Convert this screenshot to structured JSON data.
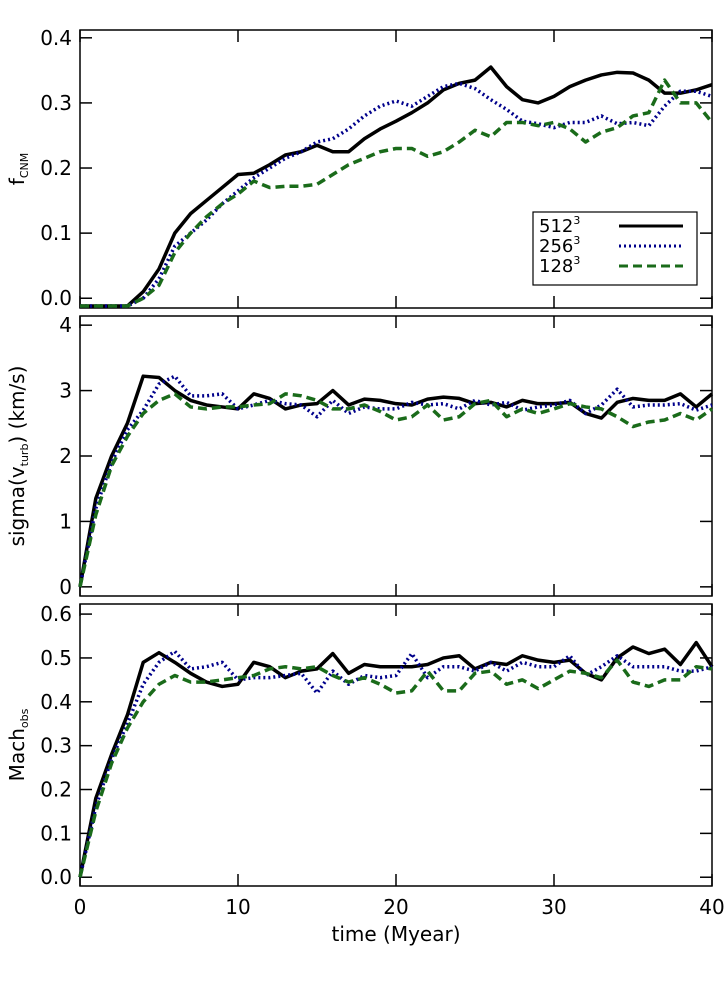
{
  "chart_data": [
    {
      "type": "line",
      "ylabel": [
        {
          "text": "f"
        },
        {
          "sub": "CNM"
        }
      ],
      "x": [
        0,
        1,
        2,
        3,
        4,
        5,
        6,
        7,
        8,
        9,
        10,
        11,
        12,
        13,
        14,
        15,
        16,
        17,
        18,
        19,
        20,
        21,
        22,
        23,
        24,
        25,
        26,
        27,
        28,
        29,
        30,
        31,
        32,
        33,
        34,
        35,
        36,
        37,
        38,
        39,
        40
      ],
      "xlim": [
        0,
        40
      ],
      "ylim": [
        -0.015,
        0.412
      ],
      "yticks": [
        {
          "value": 0,
          "label": "0.0"
        },
        0.1,
        0.2,
        0.3,
        0.4
      ],
      "legend": "lower right",
      "series": [
        {
          "name": "512",
          "name_sup": "3",
          "color": "#000000",
          "dash": "solid",
          "values": [
            -0.012,
            -0.012,
            -0.012,
            -0.012,
            0.01,
            0.045,
            0.1,
            0.13,
            0.15,
            0.17,
            0.19,
            0.192,
            0.205,
            0.22,
            0.225,
            0.235,
            0.225,
            0.225,
            0.245,
            0.26,
            0.272,
            0.285,
            0.3,
            0.32,
            0.33,
            0.335,
            0.355,
            0.325,
            0.305,
            0.3,
            0.31,
            0.325,
            0.335,
            0.343,
            0.347,
            0.346,
            0.335,
            0.315,
            0.315,
            0.32,
            0.328
          ]
        },
        {
          "name": "256",
          "name_sup": "3",
          "color": "#00008b",
          "dash": "dotted",
          "values": [
            -0.012,
            -0.012,
            -0.012,
            -0.012,
            0,
            0.03,
            0.08,
            0.1,
            0.12,
            0.145,
            0.165,
            0.185,
            0.2,
            0.215,
            0.225,
            0.24,
            0.245,
            0.26,
            0.28,
            0.295,
            0.303,
            0.295,
            0.31,
            0.325,
            0.33,
            0.322,
            0.305,
            0.29,
            0.272,
            0.268,
            0.262,
            0.27,
            0.27,
            0.28,
            0.268,
            0.27,
            0.265,
            0.295,
            0.318,
            0.318,
            0.31
          ]
        },
        {
          "name": "128",
          "name_sup": "3",
          "color": "#1a6b1a",
          "dash": "dashed",
          "values": [
            -0.012,
            -0.012,
            -0.012,
            -0.012,
            0,
            0.02,
            0.07,
            0.1,
            0.125,
            0.145,
            0.16,
            0.18,
            0.17,
            0.172,
            0.172,
            0.175,
            0.19,
            0.205,
            0.215,
            0.225,
            0.23,
            0.23,
            0.218,
            0.225,
            0.24,
            0.258,
            0.248,
            0.27,
            0.27,
            0.265,
            0.27,
            0.26,
            0.24,
            0.255,
            0.262,
            0.28,
            0.285,
            0.335,
            0.3,
            0.3,
            0.27
          ]
        }
      ]
    },
    {
      "type": "line",
      "ylabel": [
        {
          "text": "sigma(v"
        },
        {
          "sub": "turb"
        },
        {
          "text": ") (km/s)"
        }
      ],
      "x": [
        0,
        1,
        2,
        3,
        4,
        5,
        6,
        7,
        8,
        9,
        10,
        11,
        12,
        13,
        14,
        15,
        16,
        17,
        18,
        19,
        20,
        21,
        22,
        23,
        24,
        25,
        26,
        27,
        28,
        29,
        30,
        31,
        32,
        33,
        34,
        35,
        36,
        37,
        38,
        39,
        40
      ],
      "xlim": [
        0,
        40
      ],
      "ylim": [
        -0.14,
        4.14
      ],
      "yticks": [
        0,
        1,
        2,
        3,
        4
      ],
      "series": [
        {
          "color": "#000000",
          "dash": "solid",
          "values": [
            0,
            1.35,
            2.0,
            2.5,
            3.22,
            3.2,
            3.0,
            2.85,
            2.78,
            2.75,
            2.72,
            2.95,
            2.88,
            2.72,
            2.78,
            2.8,
            3.0,
            2.78,
            2.87,
            2.85,
            2.8,
            2.78,
            2.87,
            2.9,
            2.88,
            2.8,
            2.82,
            2.75,
            2.85,
            2.8,
            2.8,
            2.82,
            2.65,
            2.58,
            2.82,
            2.88,
            2.85,
            2.85,
            2.95,
            2.75,
            2.95
          ]
        },
        {
          "color": "#00008b",
          "dash": "dotted",
          "values": [
            0,
            1.2,
            1.9,
            2.4,
            2.7,
            3.1,
            3.22,
            2.92,
            2.92,
            2.95,
            2.72,
            2.78,
            2.85,
            2.8,
            2.78,
            2.6,
            2.85,
            2.65,
            2.75,
            2.72,
            2.72,
            2.82,
            2.78,
            2.8,
            2.72,
            2.85,
            2.78,
            2.82,
            2.7,
            2.75,
            2.78,
            2.85,
            2.65,
            2.78,
            3.02,
            2.75,
            2.78,
            2.78,
            2.8,
            2.7,
            2.78
          ]
        },
        {
          "color": "#1a6b1a",
          "dash": "dashed",
          "values": [
            0,
            1.1,
            1.85,
            2.3,
            2.65,
            2.85,
            2.95,
            2.75,
            2.72,
            2.75,
            2.75,
            2.78,
            2.8,
            2.95,
            2.92,
            2.85,
            2.72,
            2.72,
            2.78,
            2.68,
            2.55,
            2.6,
            2.78,
            2.55,
            2.6,
            2.8,
            2.85,
            2.6,
            2.72,
            2.65,
            2.72,
            2.8,
            2.75,
            2.72,
            2.6,
            2.45,
            2.52,
            2.55,
            2.65,
            2.55,
            2.72
          ]
        }
      ]
    },
    {
      "type": "line",
      "ylabel": [
        {
          "text": "Mach"
        },
        {
          "sub": "obs"
        }
      ],
      "xlabel": "time (Myear)",
      "x": [
        0,
        1,
        2,
        3,
        4,
        5,
        6,
        7,
        8,
        9,
        10,
        11,
        12,
        13,
        14,
        15,
        16,
        17,
        18,
        19,
        20,
        21,
        22,
        23,
        24,
        25,
        26,
        27,
        28,
        29,
        30,
        31,
        32,
        33,
        34,
        35,
        36,
        37,
        38,
        39,
        40
      ],
      "xlim": [
        0,
        40
      ],
      "xticks": [
        0,
        10,
        20,
        30,
        40
      ],
      "ylim": [
        -0.02,
        0.623
      ],
      "yticks": [
        {
          "value": 0,
          "label": "0.0"
        },
        0.1,
        0.2,
        0.3,
        0.4,
        0.5,
        0.6
      ],
      "series": [
        {
          "color": "#000000",
          "dash": "solid",
          "values": [
            0,
            0.18,
            0.28,
            0.37,
            0.49,
            0.512,
            0.49,
            0.465,
            0.445,
            0.435,
            0.44,
            0.49,
            0.48,
            0.455,
            0.47,
            0.475,
            0.51,
            0.465,
            0.485,
            0.48,
            0.48,
            0.48,
            0.485,
            0.5,
            0.505,
            0.475,
            0.49,
            0.485,
            0.505,
            0.495,
            0.49,
            0.495,
            0.465,
            0.45,
            0.5,
            0.525,
            0.51,
            0.52,
            0.485,
            0.535,
            0.48
          ]
        },
        {
          "color": "#00008b",
          "dash": "dotted",
          "values": [
            0,
            0.16,
            0.27,
            0.35,
            0.44,
            0.49,
            0.515,
            0.475,
            0.48,
            0.49,
            0.45,
            0.455,
            0.455,
            0.46,
            0.465,
            0.42,
            0.47,
            0.44,
            0.46,
            0.455,
            0.46,
            0.51,
            0.455,
            0.48,
            0.48,
            0.47,
            0.49,
            0.47,
            0.49,
            0.48,
            0.48,
            0.505,
            0.46,
            0.48,
            0.505,
            0.48,
            0.48,
            0.48,
            0.47,
            0.47,
            0.48
          ]
        },
        {
          "color": "#1a6b1a",
          "dash": "dashed",
          "values": [
            0,
            0.15,
            0.26,
            0.34,
            0.4,
            0.44,
            0.46,
            0.445,
            0.445,
            0.45,
            0.455,
            0.46,
            0.475,
            0.48,
            0.475,
            0.48,
            0.46,
            0.445,
            0.455,
            0.44,
            0.42,
            0.425,
            0.47,
            0.425,
            0.425,
            0.465,
            0.47,
            0.44,
            0.45,
            0.43,
            0.45,
            0.47,
            0.465,
            0.455,
            0.495,
            0.445,
            0.435,
            0.45,
            0.45,
            0.48,
            0.475
          ]
        }
      ]
    }
  ]
}
